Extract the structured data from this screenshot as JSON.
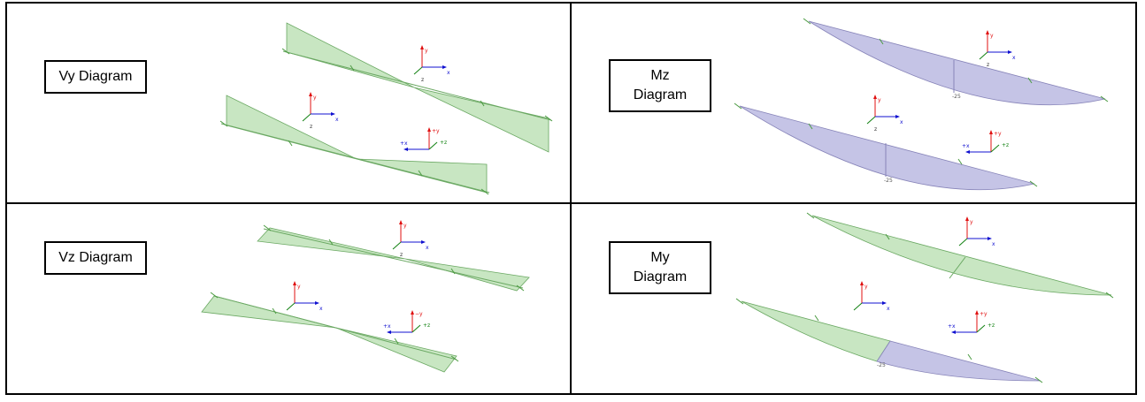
{
  "panels": [
    {
      "id": "vy",
      "label": "Vy Diagram",
      "value_labels": [
        "",
        ""
      ]
    },
    {
      "id": "mz",
      "label": "Mz\nDiagram",
      "value_labels": [
        "-25",
        "-25"
      ]
    },
    {
      "id": "vz",
      "label": "Vz Diagram",
      "value_labels": [
        "",
        ""
      ]
    },
    {
      "id": "my",
      "label": "My\nDiagram",
      "value_labels": [
        "",
        "-25"
      ]
    }
  ],
  "axes": {
    "local": {
      "y": "y",
      "x": "x",
      "z": "z"
    },
    "global": {
      "y": "+y",
      "x": "+x",
      "z": "+z"
    },
    "global_neg": {
      "y": "−y",
      "x": "+x",
      "z": "+z"
    }
  },
  "colors": {
    "shear_fill": "#c8e6c2",
    "shear_stroke": "#6aa862",
    "moment_fill": "#c5c4e6",
    "moment_stroke": "#8683b8",
    "axis_red": "#e01010",
    "axis_blue": "#1010d0",
    "axis_green": "#108010"
  }
}
